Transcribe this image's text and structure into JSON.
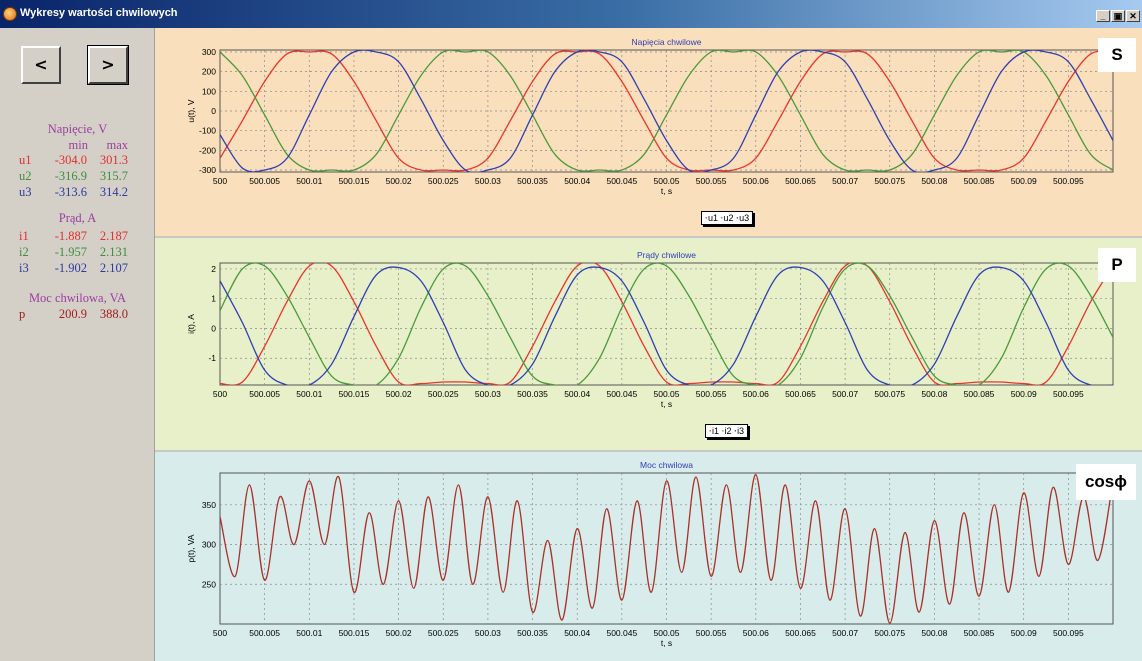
{
  "window": {
    "title": "Wykresy wartości chwilowych",
    "buttons": {
      "minimize": "_",
      "restore": "▣",
      "close": "✕"
    }
  },
  "nav": {
    "prev_label": "<",
    "next_label": ">"
  },
  "stats": {
    "voltage": {
      "title": "Napięcie, V",
      "min_header": "min",
      "max_header": "max",
      "rows": [
        {
          "label": "u1",
          "min": "-304.0",
          "max": "301.3",
          "color": "#e03030"
        },
        {
          "label": "u2",
          "min": "-316.9",
          "max": "315.7",
          "color": "#3e8e3e"
        },
        {
          "label": "u3",
          "min": "-313.6",
          "max": "314.2",
          "color": "#2e3aa0"
        }
      ]
    },
    "current": {
      "title": "Prąd, A",
      "rows": [
        {
          "label": "i1",
          "min": "-1.887",
          "max": "2.187",
          "color": "#e03030"
        },
        {
          "label": "i2",
          "min": "-1.957",
          "max": "2.131",
          "color": "#3e8e3e"
        },
        {
          "label": "i3",
          "min": "-1.902",
          "max": "2.107",
          "color": "#2e3aa0"
        }
      ]
    },
    "power": {
      "title": "Moc chwilowa, VA",
      "rows": [
        {
          "label": "p",
          "min": "200.9",
          "max": "388.0",
          "color": "#a02020"
        }
      ]
    }
  },
  "panels": {
    "voltage": {
      "badge": "S",
      "legend": [
        "u1",
        "u2",
        "u3"
      ]
    },
    "current": {
      "badge": "P",
      "legend": [
        "i1",
        "i2",
        "i3"
      ]
    },
    "power": {
      "badge": "cosϕ",
      "legend": []
    }
  },
  "colors": {
    "series1": "#e8352e",
    "series2": "#4b9a3e",
    "series3": "#2f3fb5",
    "power": "#a83228",
    "voltage_bg": "#f9dfbb",
    "current_bg": "#e7f0c8",
    "power_bg": "#d8ecec"
  },
  "chart_data": [
    {
      "type": "line",
      "title": "Napięcia chwilowe",
      "xlabel": "t, s",
      "ylabel": "u(t), V",
      "xlim": [
        500,
        500.1
      ],
      "ylim": [
        -310,
        310
      ],
      "x_ticks": [
        "500",
        "500.005",
        "500.01",
        "500.015",
        "500.02",
        "500.025",
        "500.03",
        "500.035",
        "500.04",
        "500.045",
        "500.05",
        "500.055",
        "500.06",
        "500.065",
        "500.07",
        "500.075",
        "500.08",
        "500.085",
        "500.09",
        "500.095"
      ],
      "y_ticks": [
        300,
        200,
        100,
        0,
        -100,
        -200,
        -300
      ],
      "grid": true,
      "legend": "bottom-center",
      "series": [
        {
          "name": "u1",
          "x": [
            500,
            500.0025,
            500.005,
            500.0075,
            500.01,
            500.0125,
            500.015,
            500.0175,
            500.02,
            500.0225,
            500.025,
            500.0275,
            500.03,
            500.0325,
            500.035,
            500.0375,
            500.04,
            500.0425,
            500.045,
            500.0475,
            500.05,
            500.0525,
            500.055,
            500.0575,
            500.06,
            500.0625,
            500.065,
            500.0675,
            500.07,
            500.0725,
            500.075,
            500.0775,
            500.08,
            500.0825,
            500.085,
            500.0875,
            500.09,
            500.0925,
            500.095,
            500.0975,
            500.1
          ],
          "y": [
            -240,
            -50,
            150,
            290,
            300,
            290,
            150,
            -50,
            -240,
            -300,
            -300,
            -300,
            -240,
            -50,
            150,
            290,
            300,
            290,
            150,
            -50,
            -240,
            -300,
            -300,
            -300,
            -240,
            -50,
            150,
            290,
            300,
            290,
            150,
            -50,
            -240,
            -300,
            -300,
            -300,
            -240,
            -50,
            150,
            290,
            300
          ]
        },
        {
          "name": "u2",
          "x": [
            500,
            500.0025,
            500.005,
            500.0075,
            500.01,
            500.0125,
            500.015,
            500.0175,
            500.02,
            500.0225,
            500.025,
            500.0275,
            500.03,
            500.0325,
            500.035,
            500.0375,
            500.04,
            500.0425,
            500.045,
            500.0475,
            500.05,
            500.0525,
            500.055,
            500.0575,
            500.06,
            500.0625,
            500.065,
            500.0675,
            500.07,
            500.0725,
            500.075,
            500.0775,
            500.08,
            500.0825,
            500.085,
            500.0875,
            500.09,
            500.0925,
            500.095,
            500.0975,
            500.1
          ],
          "y": [
            300,
            180,
            -20,
            -220,
            -300,
            -300,
            -300,
            -220,
            -20,
            180,
            300,
            300,
            300,
            180,
            -20,
            -220,
            -300,
            -300,
            -300,
            -220,
            -20,
            180,
            300,
            300,
            300,
            180,
            -20,
            -220,
            -300,
            -300,
            -300,
            -220,
            -20,
            180,
            300,
            300,
            300,
            180,
            -20,
            -220,
            -300
          ]
        },
        {
          "name": "u3",
          "x": [
            500,
            500.0025,
            500.005,
            500.0075,
            500.01,
            500.0125,
            500.015,
            500.0175,
            500.02,
            500.0225,
            500.025,
            500.0275,
            500.03,
            500.0325,
            500.035,
            500.0375,
            500.04,
            500.0425,
            500.045,
            500.0475,
            500.05,
            500.0525,
            500.055,
            500.0575,
            500.06,
            500.0625,
            500.065,
            500.0675,
            500.07,
            500.0725,
            500.075,
            500.0775,
            500.08,
            500.0825,
            500.085,
            500.0875,
            500.09,
            500.0925,
            500.095,
            500.0975,
            500.1
          ],
          "y": [
            -120,
            -290,
            -300,
            -240,
            -20,
            200,
            300,
            300,
            250,
            60,
            -150,
            -300,
            -300,
            -240,
            -20,
            200,
            300,
            300,
            250,
            60,
            -150,
            -300,
            -300,
            -240,
            -20,
            200,
            300,
            300,
            250,
            60,
            -150,
            -300,
            -300,
            -240,
            -20,
            200,
            300,
            300,
            250,
            60,
            -150
          ]
        }
      ]
    },
    {
      "type": "line",
      "title": "Prądy chwilowe",
      "xlabel": "t, s",
      "ylabel": "i(t), A",
      "xlim": [
        500,
        500.1
      ],
      "ylim": [
        -1.9,
        2.2
      ],
      "x_ticks": [
        "500",
        "500.005",
        "500.01",
        "500.015",
        "500.02",
        "500.025",
        "500.03",
        "500.035",
        "500.04",
        "500.045",
        "500.05",
        "500.055",
        "500.06",
        "500.065",
        "500.07",
        "500.075",
        "500.08",
        "500.085",
        "500.09",
        "500.095"
      ],
      "y_ticks": [
        2,
        1,
        0,
        -1
      ],
      "grid": true,
      "legend": "bottom-center",
      "series": [
        {
          "name": "i1",
          "x": [
            500,
            500.0025,
            500.005,
            500.0075,
            500.01,
            500.0125,
            500.015,
            500.0175,
            500.02,
            500.0225,
            500.025,
            500.0275,
            500.03,
            500.0325,
            500.035,
            500.0375,
            500.04,
            500.0425,
            500.045,
            500.0475,
            500.05,
            500.0525,
            500.055,
            500.0575,
            500.06,
            500.0625,
            500.065,
            500.0675,
            500.07,
            500.0725,
            500.075,
            500.0775,
            500.08,
            500.0825,
            500.085,
            500.0875,
            500.09,
            500.0925,
            500.095,
            500.0975,
            500.1
          ],
          "y": [
            -1.85,
            -1.8,
            -0.6,
            0.9,
            2.1,
            2.1,
            0.9,
            -0.6,
            -1.8,
            -1.85,
            -1.8,
            -1.8,
            -1.85,
            -1.8,
            -0.6,
            0.9,
            2.1,
            2.1,
            0.9,
            -0.6,
            -1.8,
            -1.85,
            -1.8,
            -1.8,
            -1.85,
            -1.8,
            -0.6,
            0.9,
            2.1,
            2.1,
            0.9,
            -0.6,
            -1.8,
            -1.85,
            -1.8,
            -1.8,
            -1.85,
            -1.8,
            -0.6,
            0.9,
            2.1
          ]
        },
        {
          "name": "i2",
          "x": [
            500,
            500.0025,
            500.005,
            500.0075,
            500.01,
            500.0125,
            500.015,
            500.0175,
            500.02,
            500.0225,
            500.025,
            500.0275,
            500.03,
            500.0325,
            500.035,
            500.0375,
            500.04,
            500.0425,
            500.045,
            500.0475,
            500.05,
            500.0525,
            500.055,
            500.0575,
            500.06,
            500.0625,
            500.065,
            500.0675,
            500.07,
            500.0725,
            500.075,
            500.0775,
            500.08,
            500.0825,
            500.085,
            500.0875,
            500.09,
            500.0925,
            500.095,
            500.0975,
            500.1
          ],
          "y": [
            0.6,
            2.0,
            2.1,
            1.1,
            -0.3,
            -1.6,
            -1.9,
            -1.9,
            -1.0,
            0.7,
            2.0,
            2.1,
            1.1,
            -0.3,
            -1.6,
            -1.9,
            -1.9,
            -1.0,
            0.7,
            2.0,
            2.1,
            1.1,
            -0.3,
            -1.6,
            -1.9,
            -1.9,
            -1.0,
            0.7,
            2.0,
            2.1,
            1.1,
            -0.3,
            -1.6,
            -1.9,
            -1.9,
            -1.0,
            0.7,
            2.0,
            2.1,
            1.1,
            -0.3
          ]
        },
        {
          "name": "i3",
          "x": [
            500,
            500.0025,
            500.005,
            500.0075,
            500.01,
            500.0125,
            500.015,
            500.0175,
            500.02,
            500.0225,
            500.025,
            500.0275,
            500.03,
            500.0325,
            500.035,
            500.0375,
            500.04,
            500.0425,
            500.045,
            500.0475,
            500.05,
            500.0525,
            500.055,
            500.0575,
            500.06,
            500.0625,
            500.065,
            500.0675,
            500.07,
            500.0725,
            500.075,
            500.0775,
            500.08,
            500.0825,
            500.085,
            500.0875,
            500.09,
            500.0925,
            500.095,
            500.0975,
            500.1
          ],
          "y": [
            1.6,
            0.2,
            -1.4,
            -1.9,
            -1.9,
            -1.2,
            0.4,
            1.8,
            2.05,
            1.6,
            0.2,
            -1.4,
            -1.9,
            -1.9,
            -1.2,
            0.4,
            1.8,
            2.05,
            1.6,
            0.2,
            -1.4,
            -1.9,
            -1.9,
            -1.2,
            0.4,
            1.8,
            2.05,
            1.6,
            0.2,
            -1.4,
            -1.9,
            -1.9,
            -1.2,
            0.4,
            1.8,
            2.05,
            1.6,
            0.2,
            -1.4,
            -1.9,
            -1.9
          ]
        }
      ]
    },
    {
      "type": "line",
      "title": "Moc chwilowa",
      "xlabel": "t, s",
      "ylabel": "p(t), VA",
      "xlim": [
        500,
        500.1
      ],
      "ylim": [
        200,
        390
      ],
      "x_ticks": [
        "500",
        "500.005",
        "500.01",
        "500.015",
        "500.02",
        "500.025",
        "500.03",
        "500.035",
        "500.04",
        "500.045",
        "500.05",
        "500.055",
        "500.06",
        "500.065",
        "500.07",
        "500.075",
        "500.08",
        "500.085",
        "500.09",
        "500.095"
      ],
      "y_ticks": [
        350,
        300,
        250
      ],
      "grid": true,
      "series": [
        {
          "name": "p",
          "x": [
            500,
            500.0017,
            500.0033,
            500.005,
            500.0067,
            500.0083,
            500.01,
            500.0117,
            500.0133,
            500.015,
            500.0167,
            500.0183,
            500.02,
            500.0217,
            500.0233,
            500.025,
            500.0267,
            500.0283,
            500.03,
            500.0317,
            500.0333,
            500.035,
            500.0367,
            500.0383,
            500.04,
            500.0417,
            500.0433,
            500.045,
            500.0467,
            500.0483,
            500.05,
            500.0517,
            500.0533,
            500.055,
            500.0567,
            500.0583,
            500.06,
            500.0617,
            500.0633,
            500.065,
            500.0667,
            500.0683,
            500.07,
            500.0717,
            500.0733,
            500.075,
            500.0767,
            500.0783,
            500.08,
            500.0817,
            500.0833,
            500.085,
            500.0867,
            500.0883,
            500.09,
            500.0917,
            500.0933,
            500.095,
            500.0967,
            500.0983,
            500.1
          ],
          "y": [
            335,
            260,
            375,
            255,
            360,
            300,
            380,
            300,
            385,
            240,
            340,
            250,
            355,
            245,
            360,
            255,
            375,
            250,
            360,
            240,
            355,
            215,
            305,
            205,
            320,
            220,
            345,
            230,
            355,
            240,
            380,
            265,
            385,
            260,
            375,
            265,
            388,
            255,
            375,
            245,
            355,
            230,
            345,
            210,
            320,
            201,
            315,
            215,
            330,
            225,
            340,
            235,
            350,
            240,
            365,
            260,
            372,
            275,
            360,
            280,
            380
          ]
        }
      ]
    }
  ]
}
